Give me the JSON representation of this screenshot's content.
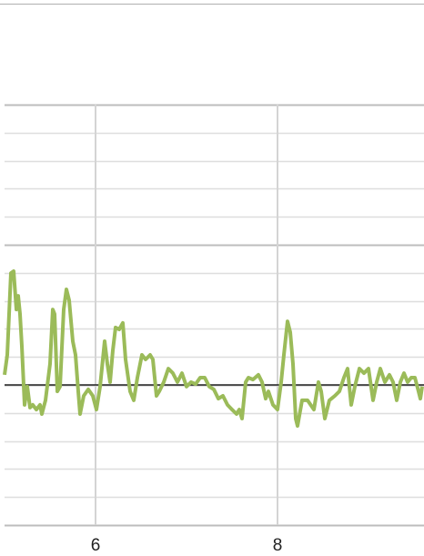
{
  "chart_data": {
    "type": "line",
    "x": [
      5.0,
      5.03,
      5.07,
      5.1,
      5.13,
      5.15,
      5.17,
      5.19,
      5.22,
      5.25,
      5.28,
      5.31,
      5.35,
      5.39,
      5.41,
      5.45,
      5.5,
      5.53,
      5.55,
      5.58,
      5.61,
      5.65,
      5.68,
      5.71,
      5.75,
      5.78,
      5.81,
      5.83,
      5.87,
      5.92,
      5.97,
      6.01,
      6.05,
      6.1,
      6.13,
      6.16,
      6.19,
      6.22,
      6.26,
      6.3,
      6.33,
      6.38,
      6.42,
      6.46,
      6.51,
      6.55,
      6.6,
      6.63,
      6.67,
      6.7,
      6.75,
      6.8,
      6.85,
      6.9,
      6.95,
      7.0,
      7.05,
      7.1,
      7.15,
      7.2,
      7.25,
      7.3,
      7.35,
      7.4,
      7.45,
      7.5,
      7.55,
      7.58,
      7.61,
      7.65,
      7.68,
      7.73,
      7.79,
      7.83,
      7.87,
      7.9,
      7.95,
      8.0,
      8.04,
      8.07,
      8.11,
      8.14,
      8.17,
      8.2,
      8.22,
      8.27,
      8.33,
      8.4,
      8.45,
      8.48,
      8.52,
      8.57,
      8.63,
      8.68,
      8.73,
      8.77,
      8.81,
      8.85,
      8.9,
      8.95,
      9.0,
      9.05,
      9.09,
      9.13,
      9.18,
      9.23,
      9.27,
      9.31,
      9.35,
      9.39,
      9.43,
      9.47,
      9.51,
      9.55,
      9.57,
      9.59
    ],
    "series": [
      {
        "color": "#9bbb59",
        "values": [
          0.36,
          1.07,
          3.99,
          4.06,
          2.69,
          3.18,
          2.53,
          1.39,
          -0.71,
          -0.06,
          -0.81,
          -0.71,
          -0.88,
          -0.71,
          -1.04,
          -0.55,
          0.75,
          2.69,
          2.53,
          -0.23,
          -0.06,
          2.69,
          3.41,
          3.02,
          1.56,
          1.07,
          -0.23,
          -1.04,
          -0.39,
          -0.16,
          -0.39,
          -0.88,
          -0.06,
          1.56,
          0.75,
          0.1,
          1.23,
          2.05,
          1.98,
          2.21,
          0.91,
          -0.23,
          -0.55,
          0.26,
          1.07,
          0.91,
          1.07,
          0.91,
          -0.39,
          -0.23,
          0.1,
          0.58,
          0.42,
          0.1,
          0.42,
          -0.06,
          0.1,
          0.03,
          0.26,
          0.26,
          -0.06,
          -0.16,
          -0.49,
          -0.39,
          -0.71,
          -0.88,
          -1.04,
          -0.88,
          -1.2,
          0.1,
          0.26,
          0.19,
          0.36,
          0.1,
          -0.49,
          -0.23,
          -0.71,
          -0.88,
          0.1,
          1.07,
          2.27,
          1.88,
          0.75,
          -1.2,
          -1.46,
          -0.55,
          -0.55,
          -0.88,
          0.1,
          -0.23,
          -1.2,
          -0.55,
          -0.39,
          -0.23,
          0.26,
          0.58,
          -0.71,
          -0.06,
          0.58,
          0.42,
          0.58,
          -0.55,
          0.1,
          0.58,
          0.1,
          0.36,
          0.1,
          -0.55,
          0.1,
          0.42,
          0.1,
          0.26,
          0.26,
          -0.23,
          -0.49,
          -0.06
        ]
      }
    ],
    "xlim": [
      5,
      9.6
    ],
    "xticks": [
      6,
      8
    ],
    "ylim": [
      -5,
      10
    ],
    "yticks": [
      -5,
      -4,
      -3,
      -2,
      -1,
      0,
      1,
      2,
      3,
      4,
      5,
      6,
      7,
      8,
      9,
      10
    ],
    "grid": true
  }
}
